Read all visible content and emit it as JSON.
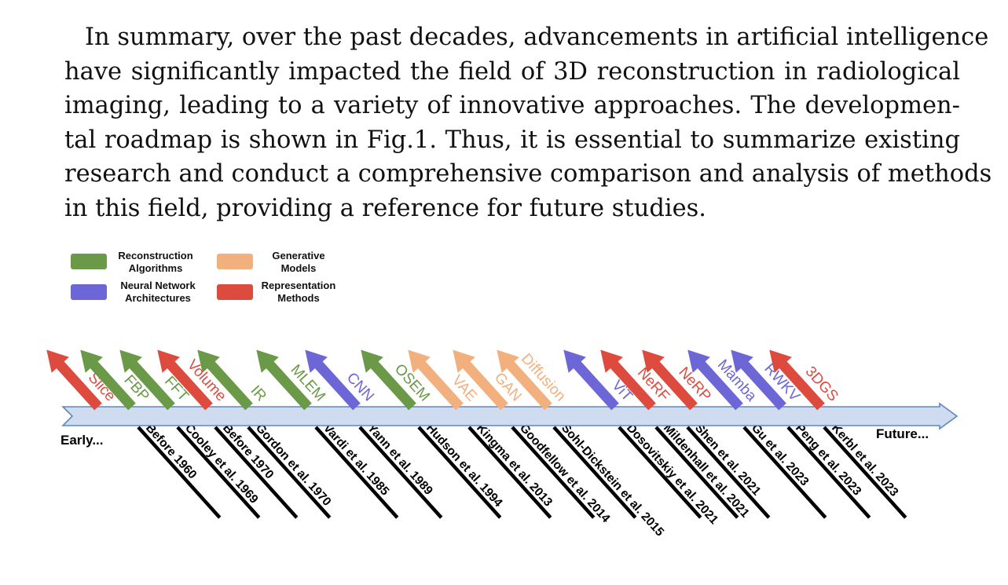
{
  "paragraph_lines": [
    "In summary, over the past decades, advancements in artificial intelligence",
    "have significantly impacted the field of 3D reconstruction in radiological",
    "imaging, leading to a variety of innovative approaches.  The developmen-",
    "tal roadmap is shown in Fig.1.  Thus, it is essential to summarize existing",
    "research and conduct a comprehensive comparison and analysis of methods",
    "in this field, providing a reference for future studies."
  ],
  "colors": {
    "reconstruction": "#6a9a48",
    "neural": "#6c66d6",
    "generative": "#f2b07e",
    "representation": "#dd4a3e",
    "timeline_fill": "#cfdcf0",
    "timeline_stroke": "#5f86c4"
  },
  "legend": [
    {
      "key": "reconstruction",
      "line1": "Reconstruction",
      "line2": "Algorithms"
    },
    {
      "key": "generative",
      "line1": "Generative",
      "line2": "Models"
    },
    {
      "key": "neural",
      "line1": "Neural Network",
      "line2": "Architectures"
    },
    {
      "key": "representation",
      "line1": "Representation",
      "line2": "Methods"
    }
  ],
  "timeline": {
    "start_label": "Early...",
    "end_label": "Future..."
  },
  "milestones": [
    {
      "method": "Slice",
      "category": "representation",
      "reference": "Before 1960"
    },
    {
      "method": "FBP",
      "category": "reconstruction",
      "reference": "Cooley et al. 1969"
    },
    {
      "method": "FFT",
      "category": "reconstruction",
      "reference": "Before 1970"
    },
    {
      "method": "Volume",
      "category": "representation",
      "reference": "Gordon et al. 1970"
    },
    {
      "method": "IR",
      "category": "reconstruction",
      "reference": "Vardi et al. 1985"
    },
    {
      "method": "MLEM",
      "category": "reconstruction",
      "reference": "Yann et al. 1989"
    },
    {
      "method": "CNN",
      "category": "neural",
      "reference": "Hudson et al. 1994"
    },
    {
      "method": "OSEM",
      "category": "reconstruction",
      "reference": "Kingma et al. 2013"
    },
    {
      "method": "VAE",
      "category": "generative",
      "reference": "Goodfellow et al. 2014"
    },
    {
      "method": "GAN",
      "category": "generative",
      "reference": "Sohl-Dickstein et al. 2015"
    },
    {
      "method": "Diffusion",
      "category": "generative",
      "reference": "Dosovitskiy et al. 2021"
    },
    {
      "method": "ViT",
      "category": "neural",
      "reference": "Mildenhall et al. 2021"
    },
    {
      "method": "NeRF",
      "category": "representation",
      "reference": "Shen et al. 2021"
    },
    {
      "method": "NeRP",
      "category": "representation",
      "reference": "Gu et al. 2023"
    },
    {
      "method": "Mamba",
      "category": "neural",
      "reference": "Peng et al. 2023"
    },
    {
      "method": "RWKV",
      "category": "neural",
      "reference": "Kerbl et al. 2023"
    },
    {
      "method": "3DGS",
      "category": "representation",
      "reference": ""
    }
  ]
}
